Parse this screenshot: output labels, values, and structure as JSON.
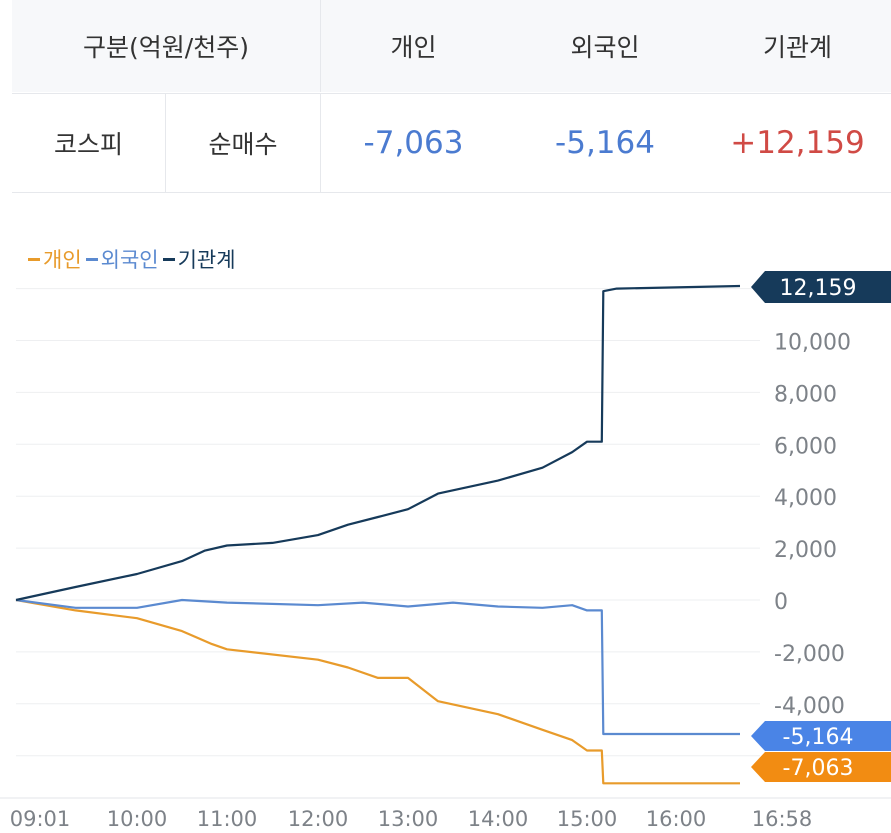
{
  "table": {
    "header": {
      "category": "구분(억원/천주)",
      "individual": "개인",
      "foreign": "외국인",
      "institution": "기관계"
    },
    "row": {
      "market": "코스피",
      "type": "순매수",
      "individual": "-7,063",
      "foreign": "-5,164",
      "institution": "+12,159"
    }
  },
  "colors": {
    "individual": "#e89b2b",
    "foreign": "#5b8ad0",
    "institution": "#163a5a",
    "positive": "#d04a45",
    "negative": "#4b7bd0"
  },
  "chart_data": {
    "type": "line",
    "title": "",
    "xlabel": "",
    "ylabel": "",
    "ylim": [
      -7300,
      12600
    ],
    "x_ticks": [
      "09:01",
      "10:00",
      "11:00",
      "12:00",
      "13:00",
      "14:00",
      "15:00",
      "16:00",
      "16:58"
    ],
    "y_ticks": [
      10000,
      8000,
      6000,
      4000,
      2000,
      0,
      -2000,
      -4000
    ],
    "y_tick_labels": [
      "10,000",
      "8,000",
      "6,000",
      "4,000",
      "2,000",
      "0",
      "-2,000",
      "-4,000"
    ],
    "legend": {
      "placement": "top-left"
    },
    "grid": true,
    "series": [
      {
        "key": "individual",
        "name": "개인",
        "end_label": "-7,063",
        "points": [
          [
            "09:01",
            0
          ],
          [
            "09:30",
            -400
          ],
          [
            "10:00",
            -700
          ],
          [
            "10:30",
            -1200
          ],
          [
            "10:50",
            -1700
          ],
          [
            "11:00",
            -1900
          ],
          [
            "12:00",
            -2300
          ],
          [
            "12:20",
            -2600
          ],
          [
            "12:40",
            -3000
          ],
          [
            "13:00",
            -3000
          ],
          [
            "13:20",
            -3900
          ],
          [
            "14:00",
            -4400
          ],
          [
            "14:30",
            -5000
          ],
          [
            "14:50",
            -5400
          ],
          [
            "15:00",
            -5800
          ],
          [
            "15:10",
            -5800
          ],
          [
            "15:11",
            -7063
          ],
          [
            "16:35",
            -7063
          ]
        ]
      },
      {
        "key": "foreign",
        "name": "외국인",
        "end_label": "-5,164",
        "points": [
          [
            "09:01",
            0
          ],
          [
            "09:30",
            -300
          ],
          [
            "10:00",
            -300
          ],
          [
            "10:30",
            0
          ],
          [
            "11:00",
            -100
          ],
          [
            "12:00",
            -200
          ],
          [
            "12:30",
            -100
          ],
          [
            "13:00",
            -250
          ],
          [
            "13:30",
            -100
          ],
          [
            "14:00",
            -250
          ],
          [
            "14:30",
            -300
          ],
          [
            "14:50",
            -200
          ],
          [
            "15:00",
            -400
          ],
          [
            "15:10",
            -400
          ],
          [
            "15:11",
            -5164
          ],
          [
            "16:35",
            -5164
          ]
        ]
      },
      {
        "key": "institution",
        "name": "기관계",
        "end_label": "12,159",
        "points": [
          [
            "09:01",
            0
          ],
          [
            "09:30",
            500
          ],
          [
            "10:00",
            1000
          ],
          [
            "10:30",
            1500
          ],
          [
            "10:45",
            1900
          ],
          [
            "11:00",
            2100
          ],
          [
            "11:30",
            2200
          ],
          [
            "12:00",
            2500
          ],
          [
            "12:20",
            2900
          ],
          [
            "12:40",
            3200
          ],
          [
            "13:00",
            3500
          ],
          [
            "13:20",
            4100
          ],
          [
            "14:00",
            4600
          ],
          [
            "14:30",
            5100
          ],
          [
            "14:50",
            5700
          ],
          [
            "15:00",
            6100
          ],
          [
            "15:10",
            6100
          ],
          [
            "15:11",
            11900
          ],
          [
            "15:20",
            12000
          ],
          [
            "16:35",
            12100
          ]
        ]
      }
    ]
  }
}
